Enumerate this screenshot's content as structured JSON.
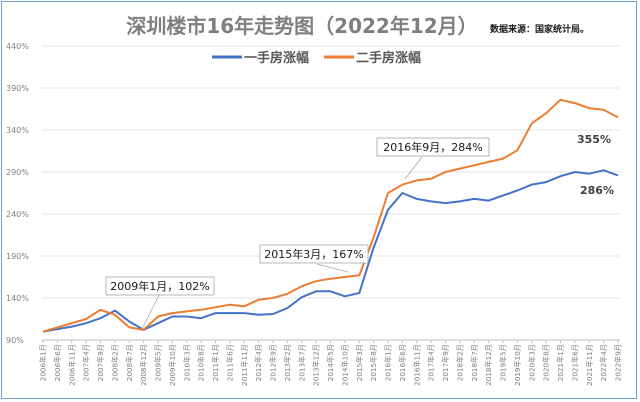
{
  "chart_data": {
    "type": "line",
    "title": "深圳楼市16年走势图（2022年12月）",
    "source": "数据来源：国家统计局。",
    "ylim": [
      90,
      440
    ],
    "yticks": [
      90,
      140,
      190,
      240,
      290,
      340,
      390,
      440
    ],
    "ytick_labels": [
      "90%",
      "140%",
      "190%",
      "240%",
      "290%",
      "340%",
      "390%",
      "440%"
    ],
    "grid": true,
    "legend_position": "top",
    "x_labels": [
      "2006年1月",
      "2006年6月",
      "2006年11月",
      "2007年4月",
      "2007年9月",
      "2008年2月",
      "2008年7月",
      "2008年12月",
      "2009年5月",
      "2009年10月",
      "2010年3月",
      "2010年8月",
      "2011年1月",
      "2011年6月",
      "2011年11月",
      "2012年4月",
      "2012年9月",
      "2013年2月",
      "2013年7月",
      "2013年12月",
      "2014年5月",
      "2014年10月",
      "2015年3月",
      "2015年8月",
      "2016年1月",
      "2016年6月",
      "2016年11月",
      "2017年4月",
      "2017年9月",
      "2018年2月",
      "2018年7月",
      "2018年12月",
      "2019年5月",
      "2019年10月",
      "2020年3月",
      "2020年8月",
      "2021年1月",
      "2021年6月",
      "2021年11月",
      "2022年4月",
      "2022年9月"
    ],
    "series": [
      {
        "name": "一手房涨幅",
        "color": "#4472c4",
        "values": [
          100,
          103,
          106,
          110,
          116,
          125,
          112,
          102,
          110,
          118,
          118,
          116,
          122,
          122,
          122,
          120,
          121,
          128,
          141,
          148,
          148,
          142,
          146,
          200,
          245,
          265,
          258,
          255,
          253,
          255,
          258,
          256,
          262,
          268,
          275,
          278,
          285,
          290,
          288,
          292,
          286
        ]
      },
      {
        "name": "二手房涨幅",
        "color": "#ed7d31",
        "values": [
          100,
          105,
          110,
          115,
          126,
          120,
          105,
          102,
          118,
          122,
          124,
          126,
          129,
          132,
          130,
          138,
          140,
          145,
          154,
          160,
          163,
          165,
          167,
          212,
          265,
          275,
          280,
          282,
          290,
          294,
          298,
          302,
          306,
          316,
          348,
          360,
          376,
          372,
          366,
          364,
          355
        ]
      }
    ],
    "annotations": [
      {
        "text": "2009年1月，102%"
      },
      {
        "text": "2015年3月，167%"
      },
      {
        "text": "2016年9月，284%"
      }
    ],
    "end_labels": [
      "355%",
      "286%"
    ]
  }
}
